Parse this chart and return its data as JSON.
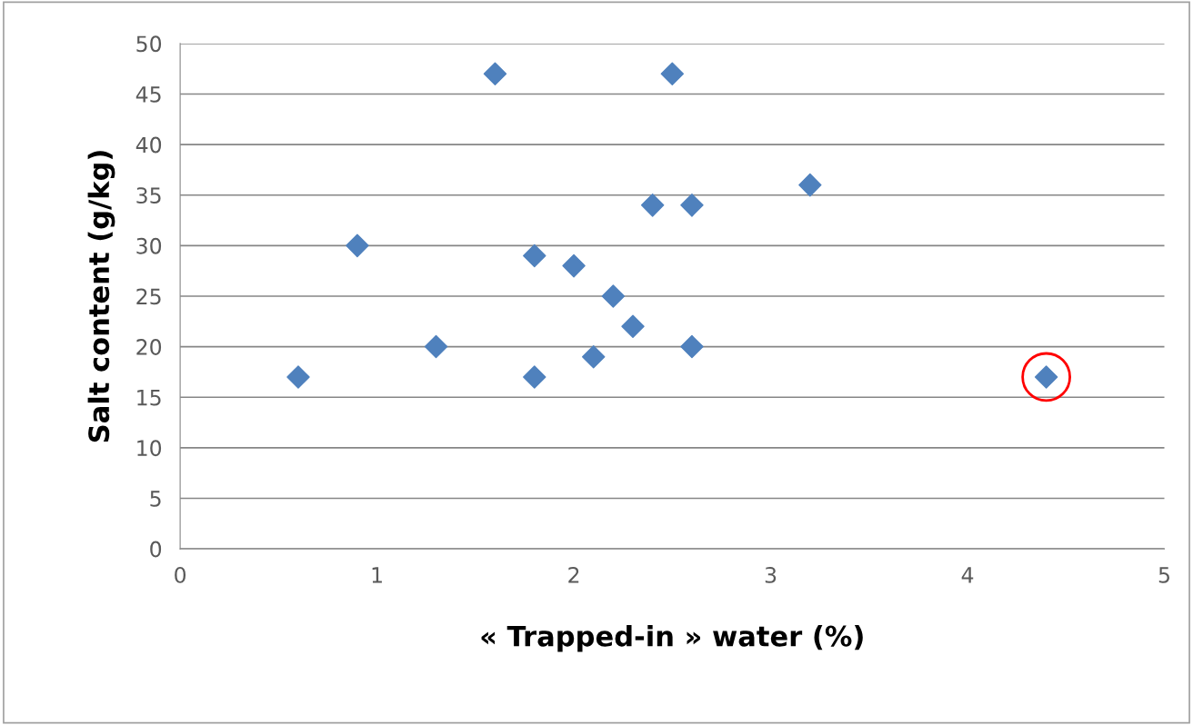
{
  "chart_data": {
    "type": "scatter",
    "xlabel": "« Trapped-in » water (%)",
    "ylabel": "Salt content (g/kg)",
    "xlim": [
      0,
      5
    ],
    "xticks": [
      0,
      1,
      2,
      3,
      4,
      5
    ],
    "ylim": [
      0,
      50
    ],
    "yticks": [
      0,
      5,
      10,
      15,
      20,
      25,
      30,
      35,
      40,
      45,
      50
    ],
    "grid": "y",
    "legend": false,
    "series": [
      {
        "marker": "diamond",
        "color": "#4f81bd",
        "x": [
          0.6,
          0.9,
          1.3,
          1.6,
          1.8,
          1.8,
          2.0,
          2.1,
          2.2,
          2.3,
          2.4,
          2.5,
          2.6,
          2.6,
          3.2,
          4.4
        ],
        "values": [
          17,
          30,
          20,
          47,
          29,
          17,
          28,
          19,
          25,
          22,
          34,
          47,
          34,
          20,
          36,
          17
        ]
      },
      {
        "marker": "circle",
        "color": "#ff0000",
        "x": [
          4.4
        ],
        "values": [
          17
        ]
      }
    ]
  }
}
